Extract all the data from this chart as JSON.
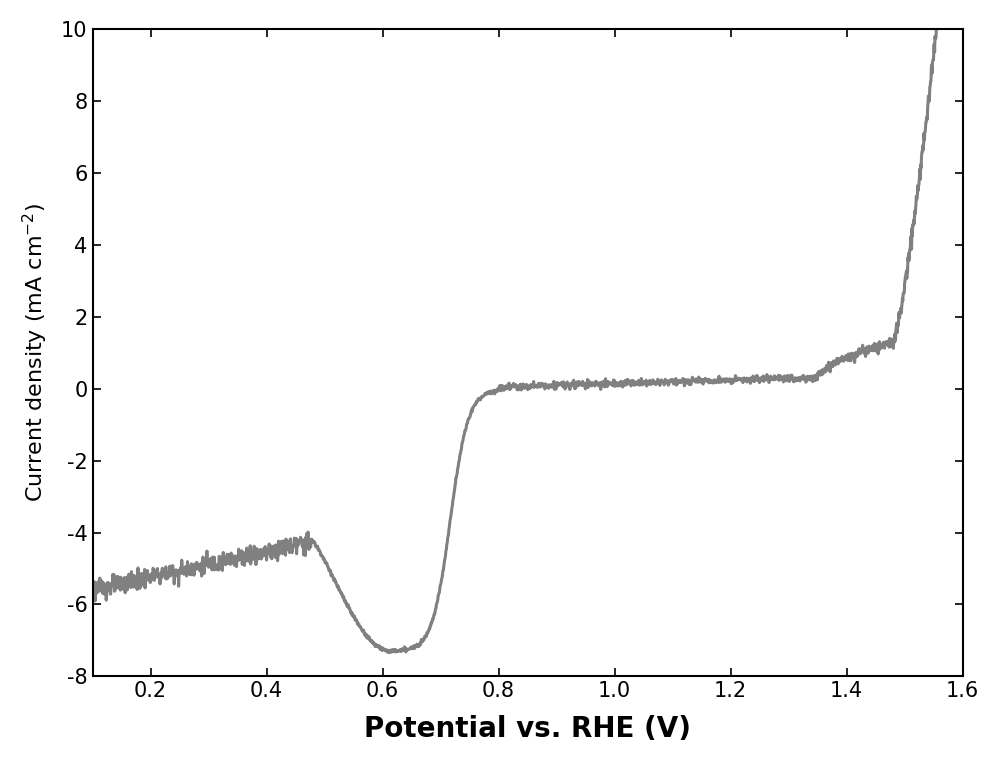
{
  "title": "",
  "xlabel": "Potential vs. RHE (V)",
  "ylabel": "Current density (mA cm$^{-2}$)",
  "xlim": [
    0.1,
    1.6
  ],
  "ylim": [
    -8,
    10
  ],
  "xticks": [
    0.2,
    0.4,
    0.6,
    0.8,
    1.0,
    1.2,
    1.4,
    1.6
  ],
  "yticks": [
    -8,
    -6,
    -4,
    -2,
    0,
    2,
    4,
    6,
    8,
    10
  ],
  "line_color": "#808080",
  "line_width": 2.2,
  "background_color": "#ffffff",
  "xlabel_fontsize": 20,
  "ylabel_fontsize": 16,
  "tick_fontsize": 15
}
